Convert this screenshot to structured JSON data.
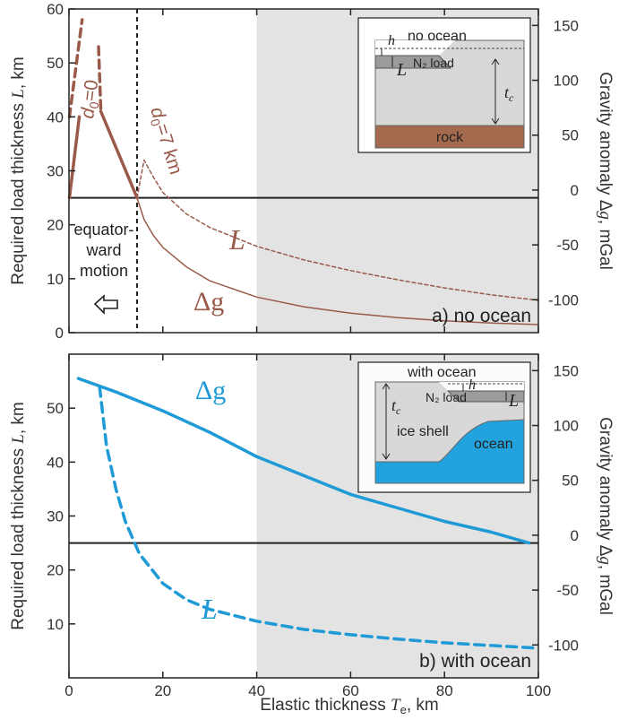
{
  "figure": {
    "x_axis_label": "Elastic thickness T_e, km",
    "x_axis_label_main": "Elastic thickness ",
    "x_axis_label_var": "T",
    "x_axis_label_sub": "e",
    "x_axis_label_unit": ", km"
  },
  "colors": {
    "brown": "#9a5a4a",
    "blue": "#1e9ad6",
    "shade": "#e3e3e3",
    "rock": "#a36a4e",
    "ocean": "#23a3de"
  },
  "chart_data": [
    {
      "type": "line",
      "panel_label": "a) no ocean",
      "xlim": [
        0,
        100
      ],
      "ylim_left": [
        0,
        60
      ],
      "ylim_right": [
        -130,
        165
      ],
      "x_ticks": [
        0,
        20,
        40,
        60,
        80,
        100
      ],
      "y_ticks_left": [
        0,
        10,
        20,
        30,
        40,
        50,
        60
      ],
      "y_ticks_right": [
        -100,
        -50,
        0,
        50,
        100,
        150
      ],
      "ylabel_left": "Required load thickness L, km",
      "ylabel_left_main": "Required load thickness ",
      "ylabel_left_var": "L",
      "ylabel_left_unit": ", km",
      "ylabel_right": "Gravity anomaly Δg, mGal",
      "ylabel_right_main": "Gravity anomaly Δ",
      "ylabel_right_var": "g",
      "ylabel_right_unit": ", mGal",
      "shaded_region_x": [
        40,
        100
      ],
      "vertical_dashed_x": 14.5,
      "zero_line_y_left": 25,
      "annotations": {
        "d0_zero": "d0=0",
        "d0_seven": "d0=7 km",
        "motion": [
          "equator-",
          "ward",
          "motion"
        ],
        "L": "L",
        "dg": "Δg"
      },
      "series": [
        {
          "name": "d0=0 solid",
          "style": "solid",
          "x": [
            0.1,
            2.2
          ],
          "y": [
            25,
            40
          ]
        },
        {
          "name": "d0=0 dashed",
          "style": "dashed",
          "x": [
            0.1,
            2.8
          ],
          "y": [
            40,
            58
          ]
        },
        {
          "name": "d0=7 km solid",
          "style": "solid",
          "x": [
            6.8,
            14.5
          ],
          "y": [
            41,
            25
          ]
        },
        {
          "name": "d0=7 km dashed",
          "style": "dashed",
          "x": [
            6.3,
            6.8
          ],
          "y": [
            53,
            41
          ]
        },
        {
          "name": "L",
          "style": "dotted",
          "x": [
            14.5,
            16,
            18,
            20,
            25,
            30,
            40,
            50,
            60,
            70,
            80,
            90,
            100
          ],
          "y": [
            25,
            32,
            28.8,
            26,
            22,
            19.5,
            16,
            13.5,
            11.5,
            9.8,
            8.3,
            7,
            6
          ]
        },
        {
          "name": "Δg",
          "style": "thin",
          "x": [
            14.5,
            16,
            18,
            20,
            25,
            30,
            40,
            50,
            60,
            70,
            80,
            90,
            100
          ],
          "y": [
            25,
            21,
            18,
            15.8,
            12.2,
            9.6,
            6.6,
            4.8,
            3.6,
            2.8,
            2.2,
            1.8,
            1.5
          ]
        }
      ],
      "inset": {
        "no_ocean": "no ocean",
        "h": "h",
        "load": "N₂ load",
        "L": "L",
        "tc": "t",
        "tc_sub": "c",
        "rock": "rock"
      }
    },
    {
      "type": "line",
      "panel_label": "b) with ocean",
      "xlim": [
        0,
        100
      ],
      "ylim_left": [
        0,
        60
      ],
      "ylim_right": [
        -130,
        165
      ],
      "x_ticks": [
        0,
        20,
        40,
        60,
        80,
        100
      ],
      "y_ticks_left": [
        10,
        20,
        30,
        40,
        50
      ],
      "y_ticks_right": [
        -100,
        -50,
        0,
        50,
        100,
        150
      ],
      "ylabel_left": "Required load thickness L, km",
      "ylabel_left_main": "Required load thickness ",
      "ylabel_left_var": "L",
      "ylabel_left_unit": ", km",
      "ylabel_right": "Gravity anomaly Δg, mGal",
      "ylabel_right_main": "Gravity anomaly Δ",
      "ylabel_right_var": "g",
      "ylabel_right_unit": ", mGal",
      "shaded_region_x": [
        40,
        100
      ],
      "zero_line_y_left": 25,
      "annotations": {
        "dg": "Δg",
        "L": "L"
      },
      "series": [
        {
          "name": "Δg",
          "style": "solid",
          "x": [
            2,
            10,
            20,
            30,
            40,
            50,
            60,
            70,
            80,
            90,
            98
          ],
          "y": [
            55.5,
            53,
            49.5,
            45.5,
            41,
            37.5,
            34,
            31.5,
            29,
            27,
            25
          ]
        },
        {
          "name": "L",
          "style": "dashed",
          "x": [
            6.5,
            8,
            10,
            12,
            15,
            20,
            25,
            30,
            40,
            50,
            60,
            70,
            80,
            90,
            100
          ],
          "y": [
            54,
            43,
            35,
            29,
            23,
            17.5,
            14.5,
            12.7,
            10.5,
            9,
            8,
            7.2,
            6.5,
            6,
            5.5
          ]
        }
      ],
      "inset": {
        "with_ocean": "with ocean",
        "h": "h",
        "load": "N₂ load",
        "L": "L",
        "tc": "t",
        "tc_sub": "c",
        "ice_shell": "ice shell",
        "ocean": "ocean"
      }
    }
  ]
}
